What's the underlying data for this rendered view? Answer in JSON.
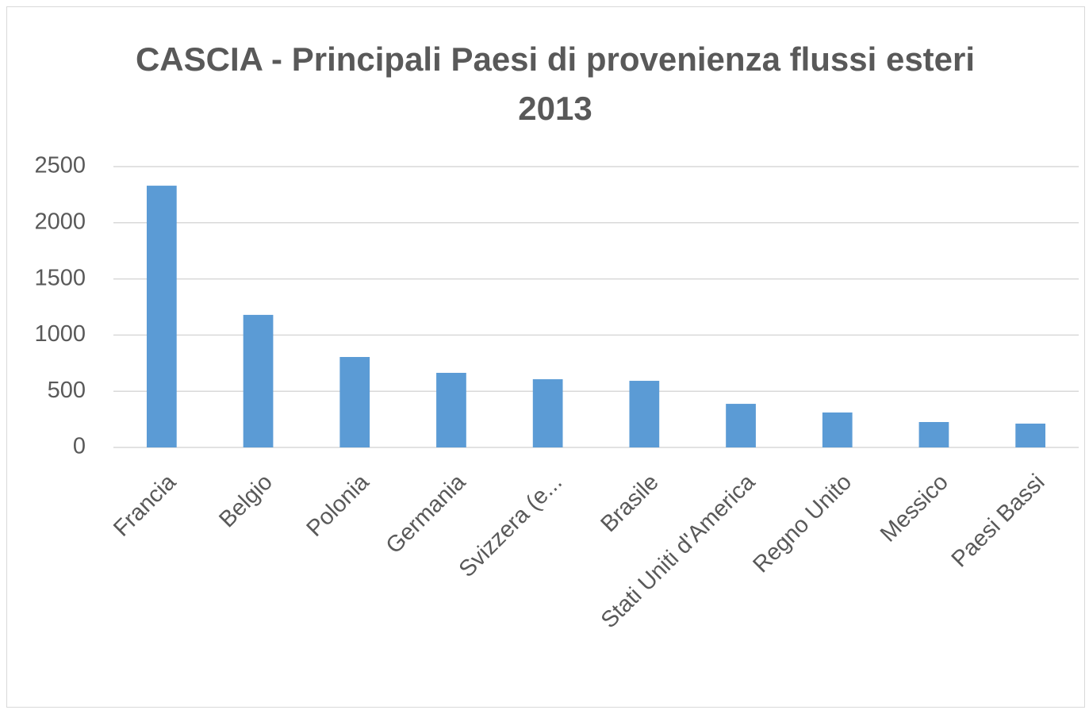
{
  "chart_data": {
    "type": "bar",
    "title": "CASCIA - Principali Paesi di provenienza flussi esteri 2013",
    "categories": [
      "Francia",
      "Belgio",
      "Polonia",
      "Germania",
      "Svizzera (e...",
      "Brasile",
      "Stati Uniti d'America",
      "Regno Unito",
      "Messico",
      "Paesi Bassi"
    ],
    "values": [
      2330,
      1180,
      805,
      664,
      607,
      593,
      388,
      311,
      226,
      212
    ],
    "color": "#5b9bd5",
    "ylim": [
      0,
      2500
    ],
    "yticks": [
      0,
      500,
      1000,
      1500,
      2000,
      2500
    ],
    "grid": true
  }
}
